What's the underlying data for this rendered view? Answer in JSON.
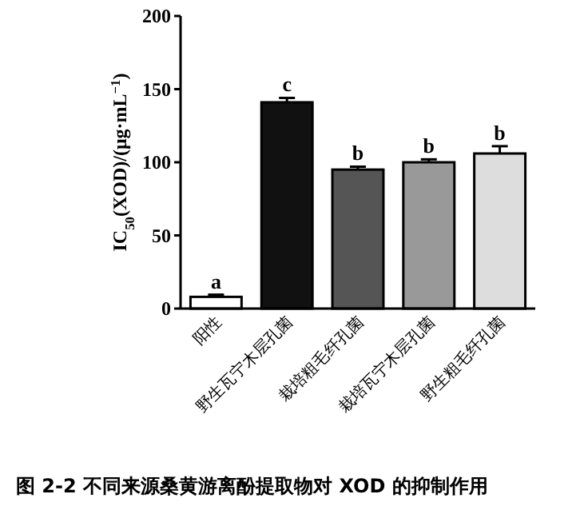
{
  "chart_data": {
    "type": "bar",
    "title": "图 2-2 不同来源桑黄游离酚提取物对 XOD 的抑制作用",
    "ylabel": "IC$_{50}$(XOD)/(μg·mL$^{−1}$)",
    "categories": [
      "阳性",
      "野生瓦宁木层孔菌",
      "栽培粗毛纤孔菌",
      "栽培瓦宁木层孔菌",
      "野生粗毛纤孔菌"
    ],
    "values": [
      8,
      141,
      95,
      100,
      106
    ],
    "errors": [
      1.5,
      3,
      2,
      2,
      5
    ],
    "colors": [
      "#ffffff",
      "#111111",
      "#555555",
      "#999999",
      "#dddddd"
    ],
    "ylim": [
      0,
      200
    ],
    "yticks": [
      0,
      50,
      100,
      150,
      200
    ],
    "annotations": [
      {
        "text": "a",
        "x": "阳性",
        "y": 9.5
      },
      {
        "text": "c",
        "x": "野生瓦宁木层孔菌",
        "y": 144
      },
      {
        "text": "b",
        "x": "栽培粗毛纤孔菌",
        "y": 97
      },
      {
        "text": "b",
        "x": "栽培瓦宁木层孔菌",
        "y": 102
      },
      {
        "text": "b",
        "x": "野生粗毛纤孔菌",
        "y": 111
      }
    ],
    "grid": false
  }
}
